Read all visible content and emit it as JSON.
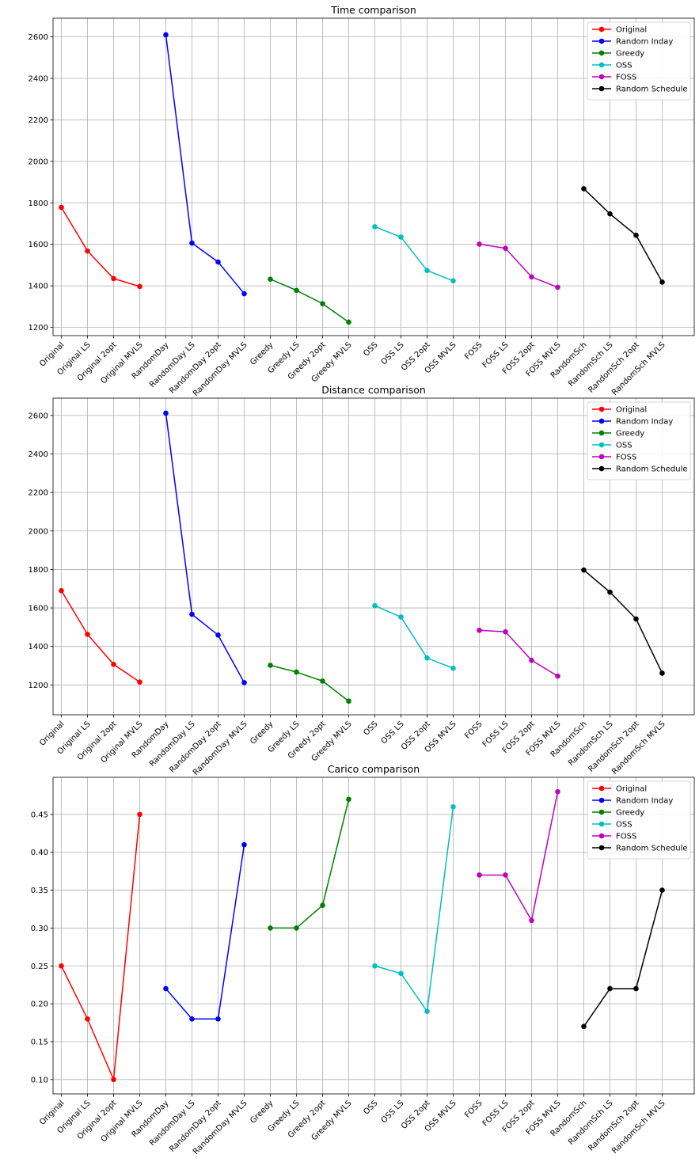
{
  "categories": [
    "Original",
    "Original LS",
    "Original 2opt",
    "Original MVLS",
    "RandomDay",
    "RandomDay LS",
    "RandomDay 2opt",
    "RandomDay MVLS",
    "Greedy",
    "Greedy LS",
    "Greedy 2opt",
    "Greedy MVLS",
    "OSS",
    "OSS LS",
    "OSS 2opt",
    "OSS MVLS",
    "FOSS",
    "FOSS LS",
    "FOSS 2opt",
    "FOSS MVLS",
    "RandomSch",
    "RandomSch LS",
    "RandomSch 2opt",
    "RandomSch MVLS"
  ],
  "legend": [
    {
      "name": "Original",
      "color": "#ff0000"
    },
    {
      "name": "Random Inday",
      "color": "#0000ff"
    },
    {
      "name": "Greedy",
      "color": "#008000"
    },
    {
      "name": "OSS",
      "color": "#00bfbf"
    },
    {
      "name": "FOSS",
      "color": "#bf00bf"
    },
    {
      "name": "Random Schedule",
      "color": "#000000"
    }
  ],
  "chart_data": [
    {
      "type": "line",
      "title": "Time comparison",
      "ylim": [
        1160,
        2690
      ],
      "yticks": [
        1200,
        1400,
        1600,
        1800,
        2000,
        2200,
        2400,
        2600
      ],
      "grid": true,
      "legend_position": "top-right",
      "series": [
        {
          "name": "Original",
          "start": 0,
          "values": [
            1778,
            1568,
            1435,
            1397
          ]
        },
        {
          "name": "Random Inday",
          "start": 4,
          "values": [
            2610,
            1606,
            1515,
            1362
          ]
        },
        {
          "name": "Greedy",
          "start": 8,
          "values": [
            1432,
            1378,
            1314,
            1225
          ]
        },
        {
          "name": "OSS",
          "start": 12,
          "values": [
            1685,
            1635,
            1474,
            1424
          ]
        },
        {
          "name": "FOSS",
          "start": 16,
          "values": [
            1601,
            1581,
            1443,
            1393
          ]
        },
        {
          "name": "Random Schedule",
          "start": 20,
          "values": [
            1868,
            1747,
            1644,
            1418
          ]
        }
      ]
    },
    {
      "type": "line",
      "title": "Distance comparison",
      "ylim": [
        1045,
        2690
      ],
      "yticks": [
        1200,
        1400,
        1600,
        1800,
        2000,
        2200,
        2400,
        2600
      ],
      "grid": true,
      "legend_position": "top-right",
      "series": [
        {
          "name": "Original",
          "start": 0,
          "values": [
            1690,
            1463,
            1307,
            1215
          ]
        },
        {
          "name": "Random Inday",
          "start": 4,
          "values": [
            2612,
            1567,
            1459,
            1212
          ]
        },
        {
          "name": "Greedy",
          "start": 8,
          "values": [
            1302,
            1267,
            1220,
            1116
          ]
        },
        {
          "name": "OSS",
          "start": 12,
          "values": [
            1612,
            1553,
            1340,
            1287
          ]
        },
        {
          "name": "FOSS",
          "start": 16,
          "values": [
            1484,
            1476,
            1328,
            1246
          ]
        },
        {
          "name": "Random Schedule",
          "start": 20,
          "values": [
            1797,
            1682,
            1543,
            1261
          ]
        }
      ]
    },
    {
      "type": "line",
      "title": "Carico comparison",
      "ylim": [
        0.081,
        0.499
      ],
      "yticks": [
        0.1,
        0.15,
        0.2,
        0.25,
        0.3,
        0.35,
        0.4,
        0.45
      ],
      "ytick_labels": [
        "0.10",
        "0.15",
        "0.20",
        "0.25",
        "0.30",
        "0.35",
        "0.40",
        "0.45"
      ],
      "grid": true,
      "legend_position": "top-right",
      "series": [
        {
          "name": "Original",
          "start": 0,
          "values": [
            0.25,
            0.18,
            0.1,
            0.45
          ]
        },
        {
          "name": "Random Inday",
          "start": 4,
          "values": [
            0.22,
            0.18,
            0.18,
            0.41
          ]
        },
        {
          "name": "Greedy",
          "start": 8,
          "values": [
            0.3,
            0.3,
            0.33,
            0.47
          ]
        },
        {
          "name": "OSS",
          "start": 12,
          "values": [
            0.25,
            0.24,
            0.19,
            0.46
          ]
        },
        {
          "name": "FOSS",
          "start": 16,
          "values": [
            0.37,
            0.37,
            0.31,
            0.48
          ]
        },
        {
          "name": "Random Schedule",
          "start": 20,
          "values": [
            0.17,
            0.22,
            0.22,
            0.35
          ]
        }
      ]
    }
  ]
}
